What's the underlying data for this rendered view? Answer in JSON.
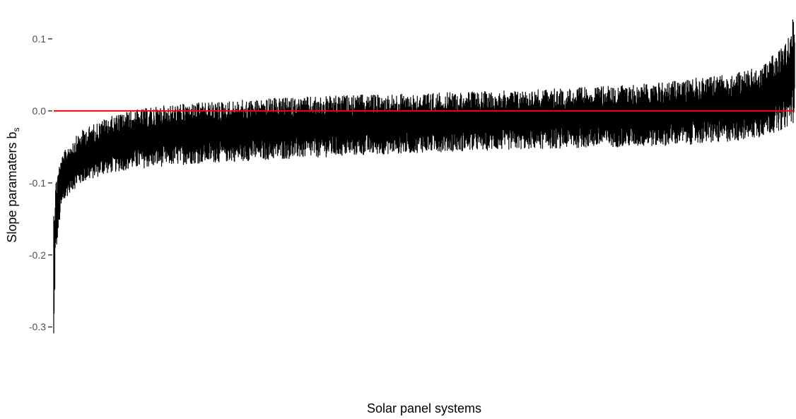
{
  "chart_data": {
    "type": "line",
    "title": "",
    "xlabel": "Solar panel systems",
    "ylabel": "Slope paramaters b",
    "ylabel_subscript": "s",
    "ylim": [
      -0.365,
      0.15
    ],
    "y_ticks": [
      {
        "value": 0.1,
        "label": "0.1"
      },
      {
        "value": 0.0,
        "label": "0.0"
      },
      {
        "value": -0.1,
        "label": "-0.1"
      },
      {
        "value": -0.2,
        "label": "-0.2"
      },
      {
        "value": -0.3,
        "label": "-0.3"
      }
    ],
    "grid": false,
    "legend": "none",
    "n_systems": 2000,
    "reference_line": {
      "y": 0.0,
      "color": "#ff0000"
    },
    "series_color": "#000000",
    "envelope_x": [
      0,
      0.002,
      0.005,
      0.01,
      0.02,
      0.04,
      0.07,
      0.1,
      0.15,
      0.2,
      0.3,
      0.4,
      0.5,
      0.6,
      0.7,
      0.8,
      0.9,
      0.95,
      0.98,
      0.995,
      1.0
    ],
    "envelope_lower": [
      -0.365,
      -0.22,
      -0.18,
      -0.14,
      -0.115,
      -0.1,
      -0.088,
      -0.082,
      -0.077,
      -0.073,
      -0.068,
      -0.063,
      -0.058,
      -0.055,
      -0.052,
      -0.05,
      -0.045,
      -0.038,
      -0.028,
      -0.02,
      -0.015
    ],
    "envelope_upper": [
      -0.12,
      -0.1,
      -0.08,
      -0.065,
      -0.045,
      -0.025,
      -0.01,
      0.0,
      0.008,
      0.012,
      0.018,
      0.022,
      0.025,
      0.028,
      0.032,
      0.038,
      0.05,
      0.06,
      0.085,
      0.11,
      0.15
    ]
  }
}
